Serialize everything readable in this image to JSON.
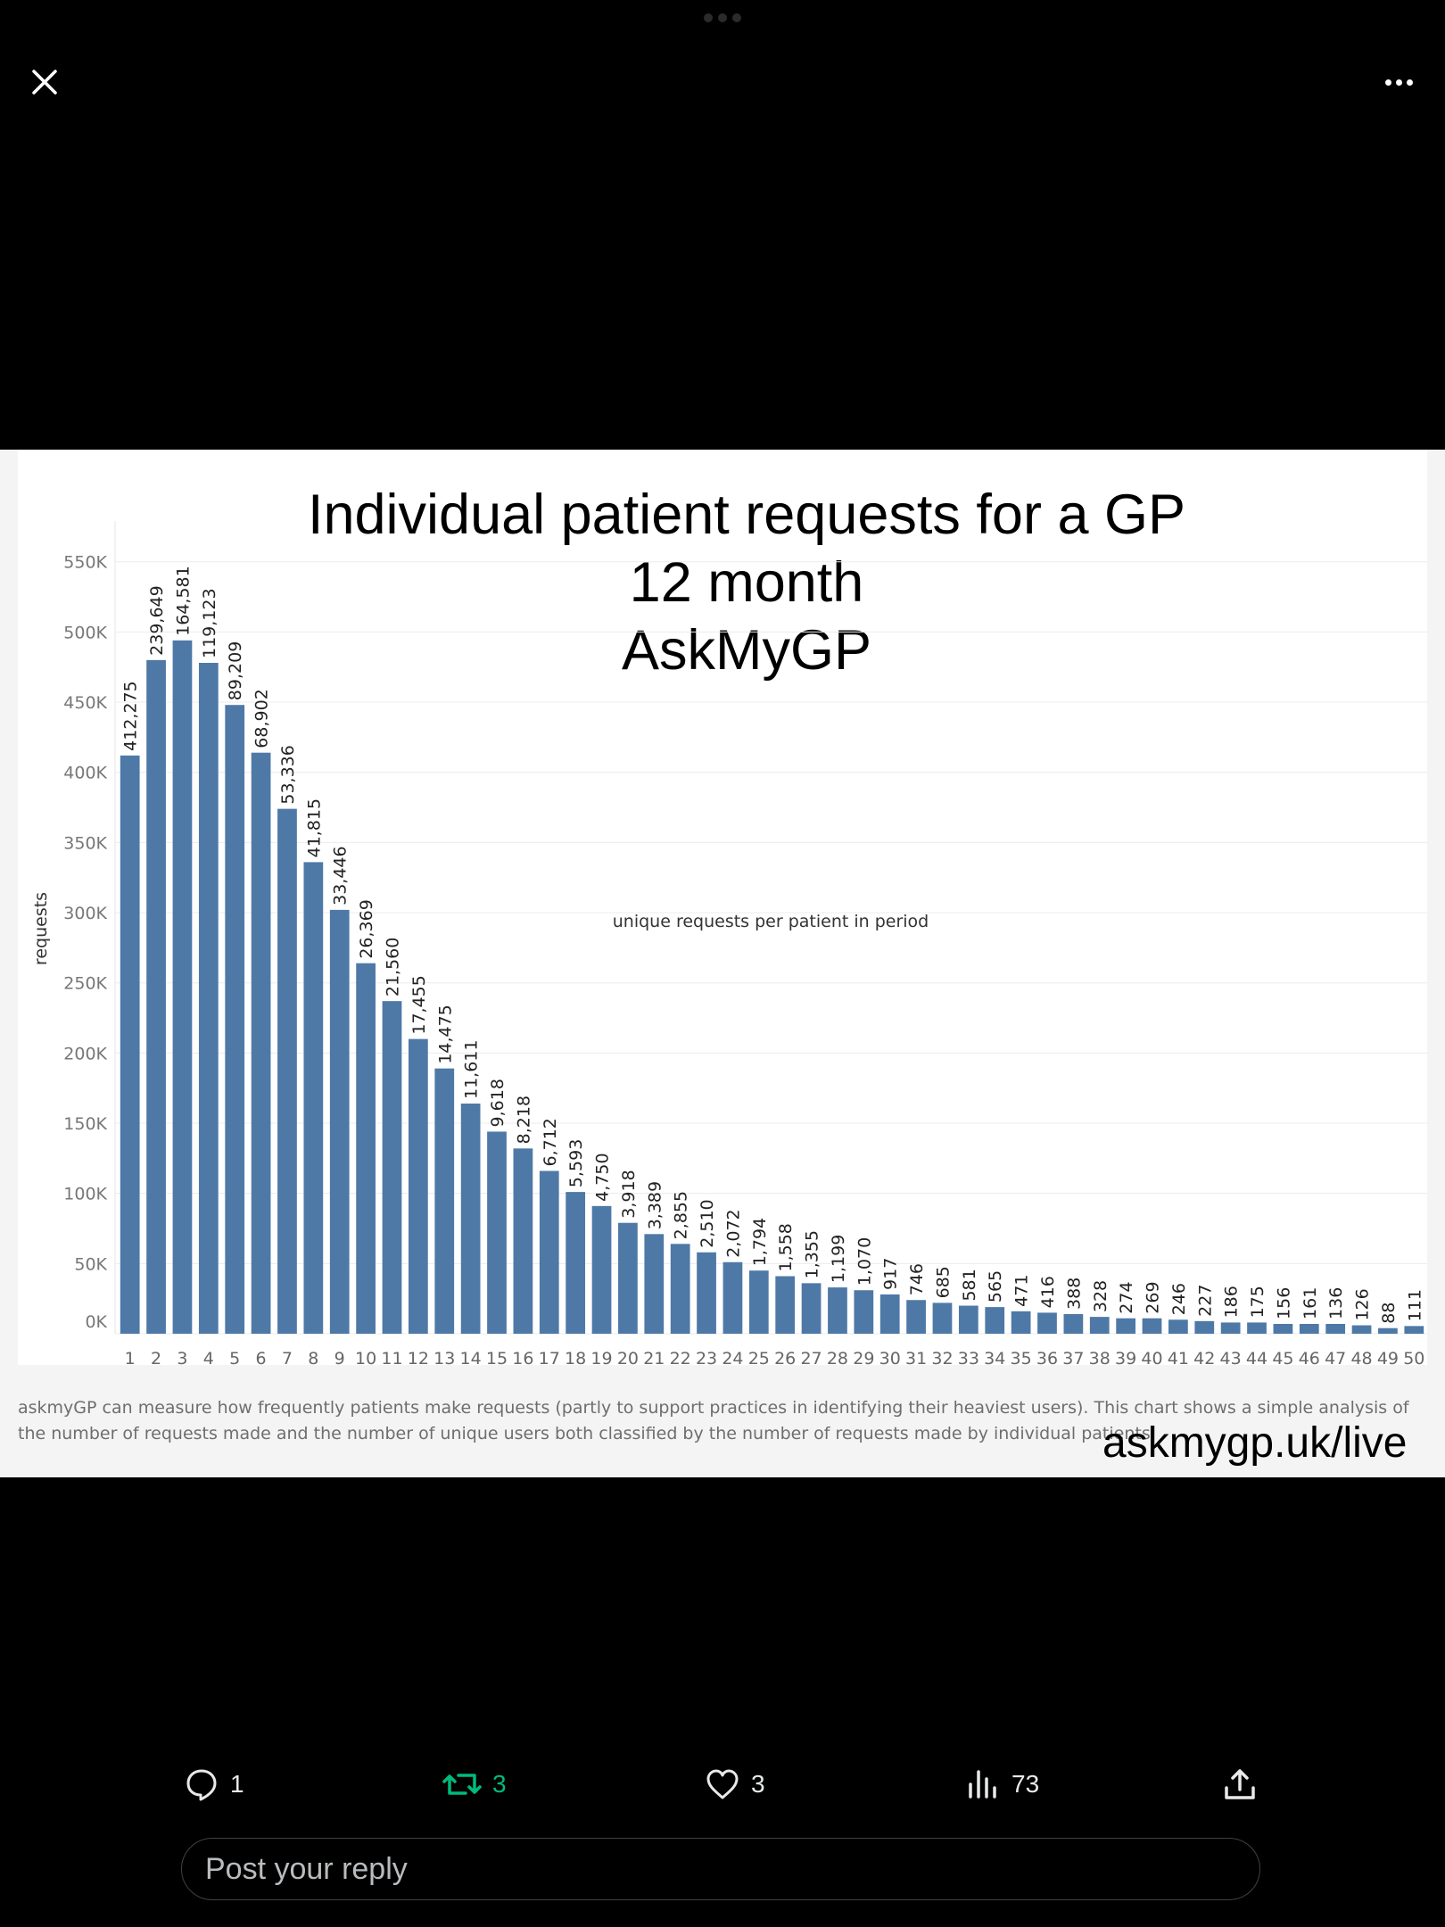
{
  "nav": {
    "close_icon": "close-icon",
    "more_icon": "more-horizontal-icon"
  },
  "chart_data": {
    "type": "bar",
    "header": "unique requests per patient in period",
    "title_lines": [
      "Individual patient requests for a GP",
      "12 month",
      "AskMyGP"
    ],
    "ylabel": "requests",
    "xlabel": "",
    "ylim": [
      0,
      560000
    ],
    "y_ticks": [
      0,
      50000,
      100000,
      150000,
      200000,
      250000,
      300000,
      350000,
      400000,
      450000,
      500000,
      550000
    ],
    "y_tick_labels": [
      "0K",
      "50K",
      "100K",
      "150K",
      "200K",
      "250K",
      "300K",
      "350K",
      "400K",
      "450K",
      "500K",
      "550K"
    ],
    "grid": true,
    "bar_color": "#4e79a7",
    "categories": [
      "1",
      "2",
      "3",
      "4",
      "5",
      "6",
      "7",
      "8",
      "9",
      "10",
      "11",
      "12",
      "13",
      "14",
      "15",
      "16",
      "17",
      "18",
      "19",
      "20",
      "21",
      "22",
      "23",
      "24",
      "25",
      "26",
      "27",
      "28",
      "29",
      "30",
      "31",
      "32",
      "33",
      "34",
      "35",
      "36",
      "37",
      "38",
      "39",
      "40",
      "41",
      "42",
      "43",
      "44",
      "45",
      "46",
      "47",
      "48",
      "49",
      "50"
    ],
    "values": [
      412000,
      480000,
      494000,
      478000,
      448000,
      414000,
      374000,
      336000,
      302000,
      264000,
      237000,
      210000,
      189000,
      164000,
      144000,
      132000,
      116000,
      101000,
      91000,
      79000,
      71000,
      64000,
      58000,
      51000,
      45000,
      41000,
      36000,
      33000,
      31000,
      28000,
      24000,
      22000,
      20000,
      19000,
      16000,
      15000,
      14000,
      12000,
      11000,
      11000,
      10000,
      9000,
      8000,
      8000,
      7000,
      7000,
      7000,
      6000,
      4000,
      5500
    ],
    "data_labels": [
      "412,275",
      "239,649",
      "164,581",
      "119,123",
      "89,209",
      "68,902",
      "53,336",
      "41,815",
      "33,446",
      "26,369",
      "21,560",
      "17,455",
      "14,475",
      "11,611",
      "9,618",
      "8,218",
      "6,712",
      "5,593",
      "4,750",
      "3,918",
      "3,389",
      "2,855",
      "2,510",
      "2,072",
      "1,794",
      "1,558",
      "1,355",
      "1,199",
      "1,070",
      "917",
      "746",
      "685",
      "581",
      "565",
      "471",
      "416",
      "388",
      "328",
      "274",
      "269",
      "246",
      "227",
      "186",
      "175",
      "156",
      "161",
      "136",
      "126",
      "88",
      "111"
    ]
  },
  "caption": "askmyGP can measure how frequently patients make requests (partly to support practices in identifying their heaviest users). This chart shows a simple analysis of the number of requests made and the number of unique users both classified by the number of requests made by individual patients.",
  "watermark_url": "askmygp.uk/live",
  "actions": {
    "replies": "1",
    "retweets": "3",
    "likes": "3",
    "views": "73",
    "retweet_color": "#00ba7c"
  },
  "reply": {
    "placeholder": "Post your reply"
  }
}
